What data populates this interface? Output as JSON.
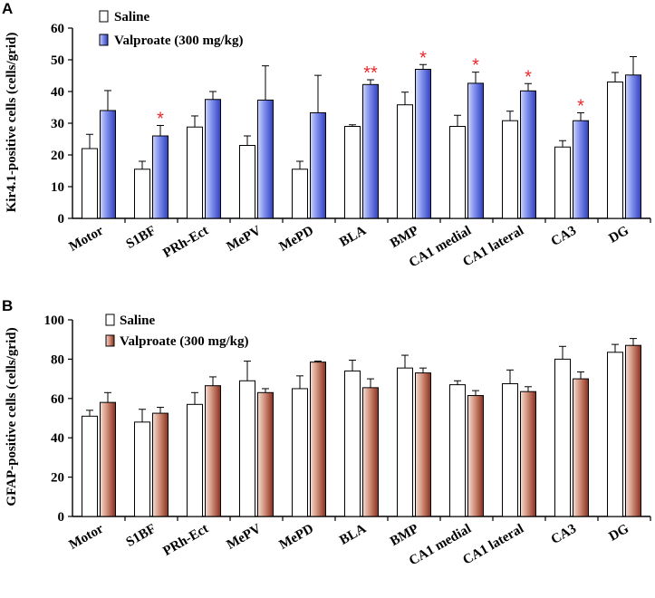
{
  "chart_data": [
    {
      "type": "bar",
      "panel": "A",
      "ylabel": "Kir4.1-positive cells (cells/grid)",
      "ylim": [
        0,
        60
      ],
      "yticks": [
        0,
        10,
        20,
        30,
        40,
        50,
        60
      ],
      "categories": [
        "Motor",
        "S1BF",
        "PRh-Ect",
        "MePV",
        "MePD",
        "BLA",
        "BMP",
        "CA1 medial",
        "CA1 lateral",
        "CA3",
        "DG"
      ],
      "series": [
        {
          "name": "Saline",
          "color": "#ffffff",
          "values": [
            22,
            15.5,
            28.8,
            23,
            15.5,
            29,
            35.8,
            29,
            30.8,
            22.5,
            43
          ],
          "errors": [
            4.5,
            2.5,
            3.5,
            3,
            2.5,
            0.5,
            4,
            3.5,
            3,
            2,
            3
          ]
        },
        {
          "name": "Valproate (300 mg/kg)",
          "color": "#5b6bd8",
          "values": [
            34,
            26,
            37.5,
            37.3,
            33.3,
            42.2,
            47,
            42.6,
            40.2,
            30.8,
            45.2
          ],
          "errors": [
            6.3,
            3.3,
            2.5,
            10.8,
            11.8,
            1.5,
            1.5,
            3.5,
            2.3,
            2.5,
            5.8
          ]
        }
      ],
      "annotations": [
        {
          "category": "S1BF",
          "text": "*"
        },
        {
          "category": "BLA",
          "text": "**"
        },
        {
          "category": "BMP",
          "text": "*"
        },
        {
          "category": "CA1 medial",
          "text": "*"
        },
        {
          "category": "CA1 lateral",
          "text": "*"
        },
        {
          "category": "CA3",
          "text": "*"
        }
      ],
      "legend": "top-left"
    },
    {
      "type": "bar",
      "panel": "B",
      "ylabel": "GFAP-positive cells (cells/grid)",
      "ylim": [
        0,
        100
      ],
      "yticks": [
        0,
        20,
        40,
        60,
        80,
        100
      ],
      "categories": [
        "Motor",
        "S1BF",
        "PRh-Ect",
        "MePV",
        "MePD",
        "BLA",
        "BMP",
        "CA1 medial",
        "CA1 lateral",
        "CA3",
        "DG"
      ],
      "series": [
        {
          "name": "Saline",
          "color": "#ffffff",
          "values": [
            51,
            48,
            57,
            69,
            65,
            74,
            75.5,
            67,
            67.5,
            80,
            83.5
          ],
          "errors": [
            3,
            6.5,
            6,
            10,
            6.5,
            5.5,
            6.5,
            2,
            7,
            6.5,
            4
          ]
        },
        {
          "name": "Valproate (300 mg/kg)",
          "color": "#b5654b",
          "values": [
            58,
            52.5,
            66.5,
            63,
            78.5,
            65.5,
            73,
            61.5,
            63.5,
            70,
            87
          ],
          "errors": [
            5,
            3,
            4.5,
            2,
            0.5,
            4.5,
            2.5,
            2.5,
            2.5,
            3.5,
            3.5
          ]
        }
      ],
      "annotations": [],
      "legend": "top-left"
    }
  ]
}
